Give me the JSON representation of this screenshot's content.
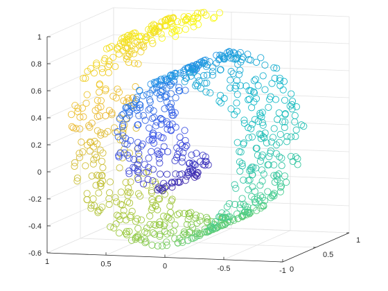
{
  "chart_data": {
    "type": "scatter",
    "projection": "3d",
    "title": "",
    "xlabel": "",
    "ylabel": "",
    "zlabel": "",
    "grid": true,
    "marker": "open-circle",
    "colormap": "parula",
    "xlim": [
      -1,
      1
    ],
    "ylim": [
      0,
      1
    ],
    "zlim": [
      -0.6,
      1
    ],
    "x_ticks": [
      {
        "value": 1,
        "label": "1"
      },
      {
        "value": 0.5,
        "label": "0.5"
      },
      {
        "value": 0,
        "label": "0"
      },
      {
        "value": -0.5,
        "label": "-0.5"
      },
      {
        "value": -1,
        "label": "-1"
      }
    ],
    "y_ticks": [
      {
        "value": 0,
        "label": "0"
      },
      {
        "value": 0.5,
        "label": "0.5"
      },
      {
        "value": 1,
        "label": "1"
      }
    ],
    "z_ticks": [
      {
        "value": 1,
        "label": "1"
      },
      {
        "value": 0.8,
        "label": "0.8"
      },
      {
        "value": 0.6,
        "label": "0.6"
      },
      {
        "value": 0.4,
        "label": "0.4"
      },
      {
        "value": 0.2,
        "label": "0.2"
      },
      {
        "value": 0,
        "label": "0"
      },
      {
        "value": -0.2,
        "label": "-0.2"
      },
      {
        "value": -0.4,
        "label": "-0.4"
      },
      {
        "value": -0.6,
        "label": "-0.6"
      }
    ],
    "series": [
      {
        "shape": "swiss-roll spiral",
        "points_estimated": 1000,
        "spiral_param_range": [
          0,
          1
        ],
        "color_by": "spiral parameter",
        "points": [
          [
            0.03,
            0.3,
            0.18
          ],
          [
            0.05,
            0.5,
            0.1
          ],
          [
            0.02,
            0.7,
            0.14
          ],
          [
            -0.08,
            0.4,
            0.22
          ],
          [
            0.1,
            0.6,
            0.05
          ],
          [
            -0.1,
            0.25,
            0.25
          ],
          [
            0.15,
            0.8,
            0.02
          ],
          [
            -0.2,
            0.55,
            0.1
          ],
          [
            0.2,
            0.35,
            -0.1
          ],
          [
            0.0,
            0.9,
            0.0
          ],
          [
            -0.3,
            0.6,
            0.0
          ],
          [
            -0.35,
            0.3,
            -0.2
          ],
          [
            -0.25,
            0.75,
            -0.3
          ],
          [
            -0.15,
            0.45,
            -0.38
          ],
          [
            0.0,
            0.65,
            -0.4
          ],
          [
            0.15,
            0.3,
            -0.44
          ],
          [
            0.3,
            0.55,
            -0.4
          ],
          [
            0.45,
            0.4,
            -0.3
          ],
          [
            0.55,
            0.7,
            -0.15
          ],
          [
            0.6,
            0.35,
            0.05
          ],
          [
            0.62,
            0.6,
            0.25
          ],
          [
            0.58,
            0.45,
            0.45
          ],
          [
            0.5,
            0.8,
            0.6
          ],
          [
            0.4,
            0.3,
            0.72
          ],
          [
            0.25,
            0.65,
            0.82
          ],
          [
            0.05,
            0.4,
            0.86
          ],
          [
            -0.15,
            0.75,
            0.85
          ],
          [
            -0.35,
            0.35,
            0.8
          ],
          [
            -0.55,
            0.6,
            0.7
          ],
          [
            -0.7,
            0.45,
            0.55
          ],
          [
            -0.8,
            0.8,
            0.38
          ],
          [
            -0.85,
            0.3,
            0.25
          ],
          [
            -0.88,
            0.7,
            0.15
          ]
        ]
      }
    ]
  }
}
